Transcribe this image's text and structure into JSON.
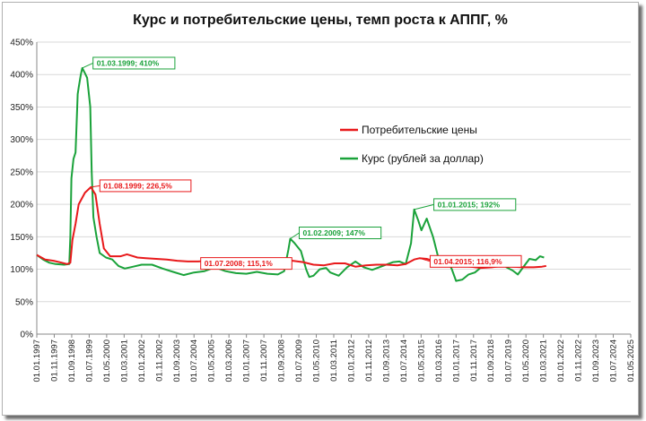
{
  "chart_data": {
    "type": "line",
    "title": "Курс и потребительские цены, темп роста к АППГ, %",
    "xlabel": "",
    "ylabel": "",
    "ylim": [
      0,
      450
    ],
    "y_ticks": [
      "0%",
      "50%",
      "100%",
      "150%",
      "200%",
      "250%",
      "300%",
      "350%",
      "400%",
      "450%"
    ],
    "x_ticks": [
      "01.01.1997",
      "01.11.1997",
      "01.09.1998",
      "01.07.1999",
      "01.05.2000",
      "01.03.2001",
      "01.01.2002",
      "01.11.2002",
      "01.09.2003",
      "01.07.2004",
      "01.05.2005",
      "01.03.2006",
      "01.01.2007",
      "01.11.2007",
      "01.09.2008",
      "01.07.2009",
      "01.05.2010",
      "01.03.2011",
      "01.01.2012",
      "01.11.2012",
      "01.09.2013",
      "01.07.2014",
      "01.05.2015",
      "01.03.2016",
      "01.01.2017",
      "01.11.2017",
      "01.09.2018",
      "01.07.2019",
      "01.05.2020",
      "01.03.2021",
      "01.01.2022",
      "01.11.2022",
      "01.09.2023",
      "01.07.2024",
      "01.05.2025"
    ],
    "legend_position": "right-center",
    "grid": "horizontal",
    "colors": {
      "cpi": "#e8191b",
      "fx": "#1aa23a"
    },
    "series": [
      {
        "name": "Потребительские цены",
        "points": [
          [
            1997.0,
            122
          ],
          [
            1997.4,
            115
          ],
          [
            1997.8,
            113
          ],
          [
            1998.2,
            110
          ],
          [
            1998.45,
            108
          ],
          [
            1998.6,
            110
          ],
          [
            1998.7,
            145
          ],
          [
            1998.85,
            170
          ],
          [
            1999.0,
            200
          ],
          [
            1999.3,
            218
          ],
          [
            1999.58,
            226.5
          ],
          [
            1999.8,
            215
          ],
          [
            2000.0,
            170
          ],
          [
            2000.2,
            132
          ],
          [
            2000.5,
            120
          ],
          [
            2000.8,
            120
          ],
          [
            2001.0,
            120
          ],
          [
            2001.3,
            123
          ],
          [
            2001.5,
            121
          ],
          [
            2001.8,
            118
          ],
          [
            2002.2,
            117
          ],
          [
            2002.7,
            116
          ],
          [
            2003.2,
            115
          ],
          [
            2003.7,
            113
          ],
          [
            2004.2,
            112
          ],
          [
            2004.7,
            112
          ],
          [
            2005.2,
            113
          ],
          [
            2005.7,
            112
          ],
          [
            2006.2,
            110
          ],
          [
            2006.7,
            110
          ],
          [
            2007.2,
            109
          ],
          [
            2007.6,
            111
          ],
          [
            2008.0,
            113
          ],
          [
            2008.5,
            115.1
          ],
          [
            2008.8,
            114
          ],
          [
            2009.2,
            113
          ],
          [
            2009.7,
            111
          ],
          [
            2010.2,
            107
          ],
          [
            2010.7,
            106
          ],
          [
            2011.2,
            109
          ],
          [
            2011.7,
            109
          ],
          [
            2012.2,
            104
          ],
          [
            2012.7,
            106
          ],
          [
            2013.2,
            107
          ],
          [
            2013.7,
            107
          ],
          [
            2014.2,
            106
          ],
          [
            2014.6,
            108
          ],
          [
            2015.0,
            115
          ],
          [
            2015.25,
            116.9
          ],
          [
            2015.6,
            116
          ],
          [
            2016.0,
            112
          ],
          [
            2016.4,
            108
          ],
          [
            2016.8,
            106
          ],
          [
            2017.2,
            105
          ],
          [
            2017.7,
            104
          ],
          [
            2018.2,
            102
          ],
          [
            2018.7,
            103
          ],
          [
            2019.2,
            105
          ],
          [
            2019.7,
            104
          ],
          [
            2020.2,
            103
          ],
          [
            2020.7,
            103
          ],
          [
            2021.1,
            104
          ],
          [
            2021.3,
            105
          ]
        ]
      },
      {
        "name": "Курс (рублей за доллар)",
        "points": [
          [
            1997.0,
            122
          ],
          [
            1997.3,
            115
          ],
          [
            1997.6,
            110
          ],
          [
            1997.9,
            108
          ],
          [
            1998.3,
            107
          ],
          [
            1998.55,
            108
          ],
          [
            1998.6,
            150
          ],
          [
            1998.65,
            240
          ],
          [
            1998.75,
            270
          ],
          [
            1998.85,
            280
          ],
          [
            1998.95,
            370
          ],
          [
            1999.0,
            380
          ],
          [
            1999.1,
            400
          ],
          [
            1999.17,
            410
          ],
          [
            1999.3,
            402
          ],
          [
            1999.4,
            395
          ],
          [
            1999.55,
            350
          ],
          [
            1999.62,
            250
          ],
          [
            1999.7,
            180
          ],
          [
            1999.85,
            150
          ],
          [
            2000.0,
            125
          ],
          [
            2000.3,
            118
          ],
          [
            2000.6,
            115
          ],
          [
            2000.9,
            105
          ],
          [
            2001.2,
            101
          ],
          [
            2001.6,
            104
          ],
          [
            2002.0,
            107
          ],
          [
            2002.5,
            107
          ],
          [
            2003.0,
            101
          ],
          [
            2003.5,
            96
          ],
          [
            2004.0,
            91
          ],
          [
            2004.5,
            95
          ],
          [
            2005.0,
            97
          ],
          [
            2005.5,
            103
          ],
          [
            2006.0,
            97
          ],
          [
            2006.5,
            94
          ],
          [
            2007.0,
            93
          ],
          [
            2007.5,
            96
          ],
          [
            2008.0,
            93
          ],
          [
            2008.5,
            92
          ],
          [
            2008.8,
            97
          ],
          [
            2009.0,
            130
          ],
          [
            2009.09,
            147
          ],
          [
            2009.3,
            140
          ],
          [
            2009.6,
            128
          ],
          [
            2009.85,
            100
          ],
          [
            2010.0,
            88
          ],
          [
            2010.2,
            90
          ],
          [
            2010.5,
            100
          ],
          [
            2010.8,
            102
          ],
          [
            2011.0,
            95
          ],
          [
            2011.4,
            90
          ],
          [
            2011.8,
            103
          ],
          [
            2012.2,
            112
          ],
          [
            2012.6,
            103
          ],
          [
            2013.0,
            99
          ],
          [
            2013.5,
            105
          ],
          [
            2014.0,
            111
          ],
          [
            2014.3,
            112
          ],
          [
            2014.6,
            108
          ],
          [
            2014.85,
            140
          ],
          [
            2015.0,
            192
          ],
          [
            2015.2,
            175
          ],
          [
            2015.35,
            160
          ],
          [
            2015.6,
            178
          ],
          [
            2015.9,
            150
          ],
          [
            2016.2,
            112
          ],
          [
            2016.5,
            120
          ],
          [
            2016.8,
            100
          ],
          [
            2017.0,
            82
          ],
          [
            2017.3,
            84
          ],
          [
            2017.6,
            92
          ],
          [
            2017.9,
            95
          ],
          [
            2018.2,
            103
          ],
          [
            2018.5,
            113
          ],
          [
            2018.8,
            116
          ],
          [
            2019.1,
            117
          ],
          [
            2019.4,
            103
          ],
          [
            2019.7,
            98
          ],
          [
            2019.95,
            92
          ],
          [
            2020.2,
            103
          ],
          [
            2020.5,
            116
          ],
          [
            2020.8,
            114
          ],
          [
            2021.0,
            120
          ],
          [
            2021.2,
            118
          ]
        ]
      }
    ],
    "annotations": [
      {
        "text": "01.03.1999; 410%",
        "x": 1999.17,
        "y": 410,
        "series": "fx"
      },
      {
        "text": "01.08.1999; 226,5%",
        "x": 1999.58,
        "y": 226.5,
        "series": "cpi"
      },
      {
        "text": "01.07.2008; 115,1%",
        "x": 2008.5,
        "y": 115.1,
        "series": "cpi"
      },
      {
        "text": "01.02.2009; 147%",
        "x": 2009.09,
        "y": 147,
        "series": "fx"
      },
      {
        "text": "01.01.2015; 192%",
        "x": 2015.0,
        "y": 192,
        "series": "fx"
      },
      {
        "text": "01.04.2015; 116,9%",
        "x": 2015.25,
        "y": 116.9,
        "series": "cpi"
      }
    ]
  }
}
